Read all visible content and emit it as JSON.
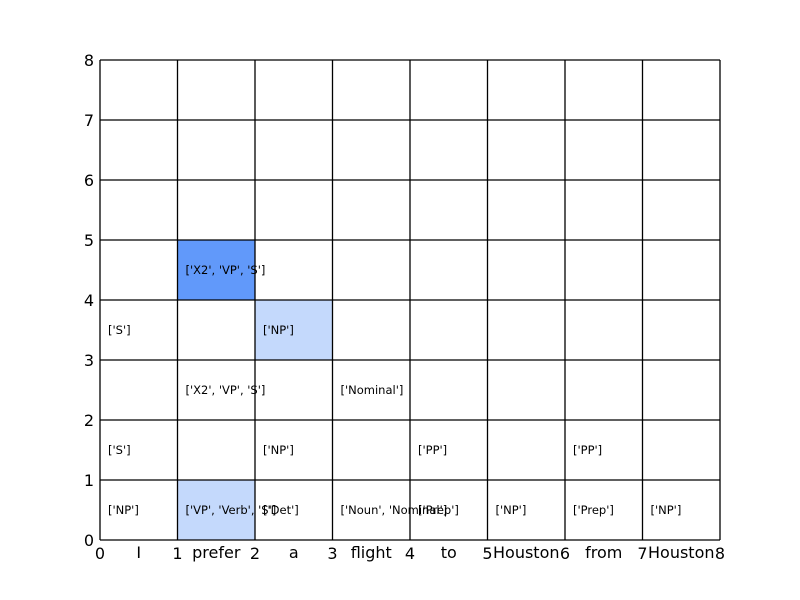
{
  "chart_data": {
    "type": "table",
    "title": "",
    "grid_size": 8,
    "grid": true,
    "x_ticks": [
      "0",
      "1",
      "2",
      "3",
      "4",
      "5",
      "6",
      "7",
      "8"
    ],
    "y_ticks": [
      "0",
      "1",
      "2",
      "3",
      "4",
      "5",
      "6",
      "7",
      "8"
    ],
    "words": [
      "I",
      "prefer",
      "a",
      "flight",
      "to",
      "Houston",
      "from",
      "Houston"
    ],
    "highlights": [
      {
        "col": 1,
        "row": 4,
        "color": "#6199fa"
      },
      {
        "col": 2,
        "row": 3,
        "color": "#c4d9fc"
      },
      {
        "col": 1,
        "row": 0,
        "color": "#c4d9fc"
      }
    ],
    "cells": [
      {
        "col": 0,
        "row": 0,
        "text": "['NP']"
      },
      {
        "col": 1,
        "row": 0,
        "text": "['VP', 'Verb', 'S']"
      },
      {
        "col": 2,
        "row": 0,
        "text": "['Det']"
      },
      {
        "col": 3,
        "row": 0,
        "text": "['Noun', 'Nominal']"
      },
      {
        "col": 4,
        "row": 0,
        "text": "['Prep']"
      },
      {
        "col": 5,
        "row": 0,
        "text": "['NP']"
      },
      {
        "col": 6,
        "row": 0,
        "text": "['Prep']"
      },
      {
        "col": 7,
        "row": 0,
        "text": "['NP']"
      },
      {
        "col": 0,
        "row": 1,
        "text": "['S']"
      },
      {
        "col": 2,
        "row": 1,
        "text": "['NP']"
      },
      {
        "col": 4,
        "row": 1,
        "text": "['PP']"
      },
      {
        "col": 6,
        "row": 1,
        "text": "['PP']"
      },
      {
        "col": 1,
        "row": 2,
        "text": "['X2', 'VP', 'S']"
      },
      {
        "col": 3,
        "row": 2,
        "text": "['Nominal']"
      },
      {
        "col": 0,
        "row": 3,
        "text": "['S']"
      },
      {
        "col": 2,
        "row": 3,
        "text": "['NP']"
      },
      {
        "col": 1,
        "row": 4,
        "text": "['X2', 'VP', 'S']"
      }
    ]
  }
}
